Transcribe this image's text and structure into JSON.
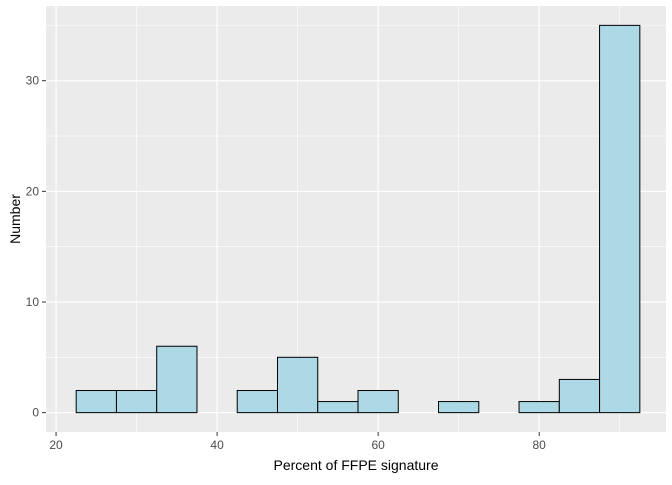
{
  "chart_data": {
    "type": "bar",
    "subtype": "histogram",
    "title": "",
    "xlabel": "Percent of FFPE signature",
    "ylabel": "Number",
    "xlim": [
      18.75,
      95.75
    ],
    "ylim": [
      -1.75,
      36.75
    ],
    "x_ticks": [
      20,
      40,
      60,
      80
    ],
    "y_ticks": [
      0,
      10,
      20,
      30
    ],
    "grid": true,
    "bin_width": 5,
    "bins": [
      {
        "x0": 22.5,
        "x1": 27.5,
        "count": 2
      },
      {
        "x0": 27.5,
        "x1": 32.5,
        "count": 2
      },
      {
        "x0": 32.5,
        "x1": 37.5,
        "count": 6
      },
      {
        "x0": 37.5,
        "x1": 42.5,
        "count": 0
      },
      {
        "x0": 42.5,
        "x1": 47.5,
        "count": 2
      },
      {
        "x0": 47.5,
        "x1": 52.5,
        "count": 5
      },
      {
        "x0": 52.5,
        "x1": 57.5,
        "count": 1
      },
      {
        "x0": 57.5,
        "x1": 62.5,
        "count": 2
      },
      {
        "x0": 62.5,
        "x1": 67.5,
        "count": 0
      },
      {
        "x0": 67.5,
        "x1": 72.5,
        "count": 1
      },
      {
        "x0": 72.5,
        "x1": 77.5,
        "count": 0
      },
      {
        "x0": 77.5,
        "x1": 82.5,
        "count": 1
      },
      {
        "x0": 82.5,
        "x1": 87.5,
        "count": 3
      },
      {
        "x0": 87.5,
        "x1": 92.5,
        "count": 35
      }
    ],
    "colors": {
      "bar_fill": "#add8e6",
      "bar_stroke": "#000000",
      "panel_background": "#ebebeb",
      "grid": "#ffffff"
    }
  }
}
